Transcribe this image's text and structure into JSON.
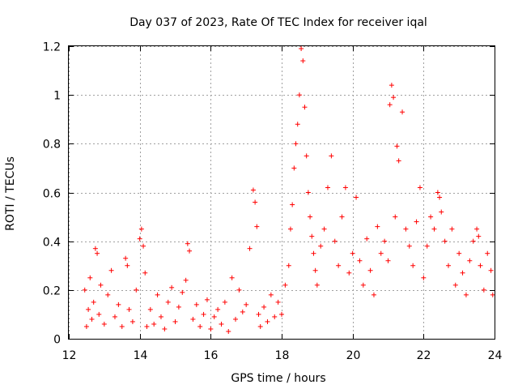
{
  "chart_data": {
    "type": "scatter",
    "title": "Day 037 of 2023, Rate Of TEC Index for receiver iqal",
    "xlabel": "GPS time / hours",
    "ylabel": "ROTI / TECUs",
    "xlim": [
      12,
      24
    ],
    "ylim": [
      0,
      1.2
    ],
    "xticks": [
      12,
      14,
      16,
      18,
      20,
      22,
      24
    ],
    "xtick_labels": [
      "12",
      "14",
      "16",
      "18",
      "20",
      "22",
      "24"
    ],
    "yticks": [
      0,
      0.2,
      0.4,
      0.6,
      0.8,
      1,
      1.2
    ],
    "ytick_labels": [
      "0",
      "0.2",
      "0.4",
      "0.6",
      "0.8",
      "1",
      "1.2"
    ],
    "grid": true,
    "marker": "plus",
    "color": "#ff0000",
    "series": [
      {
        "name": "ROTI",
        "points": [
          [
            12.45,
            0.2
          ],
          [
            12.5,
            0.05
          ],
          [
            12.55,
            0.12
          ],
          [
            12.6,
            0.25
          ],
          [
            12.65,
            0.08
          ],
          [
            12.7,
            0.15
          ],
          [
            12.75,
            0.37
          ],
          [
            12.8,
            0.35
          ],
          [
            12.85,
            0.1
          ],
          [
            12.9,
            0.22
          ],
          [
            13.0,
            0.06
          ],
          [
            13.1,
            0.18
          ],
          [
            13.2,
            0.28
          ],
          [
            13.3,
            0.09
          ],
          [
            13.4,
            0.14
          ],
          [
            13.5,
            0.05
          ],
          [
            13.6,
            0.33
          ],
          [
            13.65,
            0.3
          ],
          [
            13.7,
            0.12
          ],
          [
            13.8,
            0.07
          ],
          [
            13.9,
            0.2
          ],
          [
            14.0,
            0.41
          ],
          [
            14.05,
            0.45
          ],
          [
            14.1,
            0.38
          ],
          [
            14.15,
            0.27
          ],
          [
            14.2,
            0.05
          ],
          [
            14.3,
            0.12
          ],
          [
            14.4,
            0.06
          ],
          [
            14.5,
            0.18
          ],
          [
            14.6,
            0.09
          ],
          [
            14.7,
            0.04
          ],
          [
            14.8,
            0.15
          ],
          [
            14.9,
            0.21
          ],
          [
            15.0,
            0.07
          ],
          [
            15.1,
            0.13
          ],
          [
            15.2,
            0.19
          ],
          [
            15.3,
            0.24
          ],
          [
            15.35,
            0.39
          ],
          [
            15.4,
            0.36
          ],
          [
            15.5,
            0.08
          ],
          [
            15.6,
            0.14
          ],
          [
            15.7,
            0.05
          ],
          [
            15.8,
            0.1
          ],
          [
            15.9,
            0.16
          ],
          [
            16.0,
            0.04
          ],
          [
            16.1,
            0.09
          ],
          [
            16.2,
            0.12
          ],
          [
            16.3,
            0.06
          ],
          [
            16.4,
            0.15
          ],
          [
            16.5,
            0.03
          ],
          [
            16.6,
            0.25
          ],
          [
            16.7,
            0.08
          ],
          [
            16.8,
            0.2
          ],
          [
            16.9,
            0.11
          ],
          [
            17.0,
            0.14
          ],
          [
            17.1,
            0.37
          ],
          [
            17.2,
            0.61
          ],
          [
            17.25,
            0.56
          ],
          [
            17.3,
            0.46
          ],
          [
            17.35,
            0.1
          ],
          [
            17.4,
            0.05
          ],
          [
            17.5,
            0.13
          ],
          [
            17.6,
            0.07
          ],
          [
            17.7,
            0.18
          ],
          [
            17.8,
            0.09
          ],
          [
            17.9,
            0.15
          ],
          [
            18.0,
            0.1
          ],
          [
            18.1,
            0.22
          ],
          [
            18.2,
            0.3
          ],
          [
            18.25,
            0.45
          ],
          [
            18.3,
            0.55
          ],
          [
            18.35,
            0.7
          ],
          [
            18.4,
            0.8
          ],
          [
            18.45,
            0.88
          ],
          [
            18.5,
            1.0
          ],
          [
            18.55,
            1.19
          ],
          [
            18.6,
            1.14
          ],
          [
            18.65,
            0.95
          ],
          [
            18.7,
            0.75
          ],
          [
            18.75,
            0.6
          ],
          [
            18.8,
            0.5
          ],
          [
            18.85,
            0.42
          ],
          [
            18.9,
            0.35
          ],
          [
            18.95,
            0.28
          ],
          [
            19.0,
            0.22
          ],
          [
            19.1,
            0.38
          ],
          [
            19.2,
            0.45
          ],
          [
            19.3,
            0.62
          ],
          [
            19.4,
            0.75
          ],
          [
            19.5,
            0.4
          ],
          [
            19.6,
            0.3
          ],
          [
            19.7,
            0.5
          ],
          [
            19.8,
            0.62
          ],
          [
            19.9,
            0.27
          ],
          [
            20.0,
            0.35
          ],
          [
            20.1,
            0.58
          ],
          [
            20.2,
            0.32
          ],
          [
            20.3,
            0.22
          ],
          [
            20.4,
            0.41
          ],
          [
            20.5,
            0.28
          ],
          [
            20.6,
            0.18
          ],
          [
            20.7,
            0.46
          ],
          [
            20.8,
            0.35
          ],
          [
            20.9,
            0.4
          ],
          [
            21.0,
            0.32
          ],
          [
            21.05,
            0.96
          ],
          [
            21.1,
            1.04
          ],
          [
            21.15,
            0.99
          ],
          [
            21.2,
            0.5
          ],
          [
            21.25,
            0.79
          ],
          [
            21.3,
            0.73
          ],
          [
            21.4,
            0.93
          ],
          [
            21.5,
            0.45
          ],
          [
            21.6,
            0.38
          ],
          [
            21.7,
            0.3
          ],
          [
            21.8,
            0.48
          ],
          [
            21.9,
            0.62
          ],
          [
            22.0,
            0.25
          ],
          [
            22.1,
            0.38
          ],
          [
            22.2,
            0.5
          ],
          [
            22.3,
            0.45
          ],
          [
            22.4,
            0.6
          ],
          [
            22.45,
            0.58
          ],
          [
            22.5,
            0.52
          ],
          [
            22.6,
            0.4
          ],
          [
            22.7,
            0.3
          ],
          [
            22.8,
            0.45
          ],
          [
            22.9,
            0.22
          ],
          [
            23.0,
            0.35
          ],
          [
            23.1,
            0.27
          ],
          [
            23.2,
            0.18
          ],
          [
            23.3,
            0.32
          ],
          [
            23.4,
            0.4
          ],
          [
            23.5,
            0.45
          ],
          [
            23.55,
            0.42
          ],
          [
            23.6,
            0.3
          ],
          [
            23.7,
            0.2
          ],
          [
            23.8,
            0.35
          ],
          [
            23.9,
            0.28
          ],
          [
            23.95,
            0.18
          ]
        ]
      }
    ]
  }
}
